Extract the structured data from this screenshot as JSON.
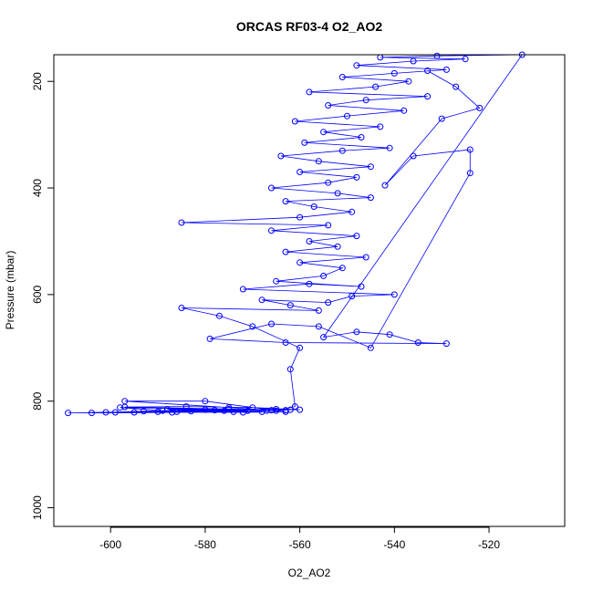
{
  "chart_data": {
    "type": "scatter",
    "title": "ORCAS RF03-4 O2_AO2",
    "xlabel": "O2_AO2",
    "ylabel": "Pressure (mbar)",
    "xlim": [
      -612,
      -504
    ],
    "ylim": [
      1035,
      150
    ],
    "y_reversed": true,
    "grid": false,
    "legend": "none",
    "marker": "open-circle",
    "connect_points": true,
    "color": "#0000ff",
    "x_ticks": [
      -600,
      -580,
      -560,
      -540,
      -520
    ],
    "x_tick_labels": [
      "-600",
      "-580",
      "-560",
      "-540",
      "-520"
    ],
    "y_ticks": [
      200,
      400,
      600,
      800,
      1000
    ],
    "y_tick_labels": [
      "200",
      "400",
      "600",
      "800",
      "1000"
    ],
    "series": [
      {
        "points": [
          [
            -574,
            820
          ],
          [
            -567,
            818
          ],
          [
            -562,
            816
          ],
          [
            -589,
            818
          ],
          [
            -580,
            816
          ],
          [
            -566,
            817
          ],
          [
            -598,
            812
          ],
          [
            -586,
            820
          ],
          [
            -571,
            818
          ],
          [
            -601,
            821
          ],
          [
            -593,
            819
          ],
          [
            -578,
            817
          ],
          [
            -609,
            822
          ],
          [
            -595,
            821
          ],
          [
            -583,
            819
          ],
          [
            -568,
            820
          ],
          [
            -604,
            822
          ],
          [
            -590,
            820
          ],
          [
            -575,
            815
          ],
          [
            -563,
            817
          ],
          [
            -597,
            811
          ],
          [
            -584,
            810
          ],
          [
            -570,
            812
          ],
          [
            -560,
            816
          ],
          [
            -588,
            815
          ],
          [
            -576,
            818
          ],
          [
            -565,
            815
          ],
          [
            -599,
            821
          ],
          [
            -587,
            821
          ],
          [
            -572,
            821
          ],
          [
            -563,
            820
          ],
          [
            -580,
            800
          ],
          [
            -597,
            800
          ],
          [
            -575,
            812
          ],
          [
            -565,
            818
          ],
          [
            -561,
            810
          ],
          [
            -562,
            740
          ],
          [
            -560,
            700
          ],
          [
            -570,
            660
          ],
          [
            -577,
            640
          ],
          [
            -585,
            625
          ],
          [
            -556,
            630
          ],
          [
            -562,
            620
          ],
          [
            -568,
            610
          ],
          [
            -554,
            615
          ],
          [
            -549,
            603
          ],
          [
            -540,
            600
          ],
          [
            -572,
            590
          ],
          [
            -558,
            580
          ],
          [
            -547,
            585
          ],
          [
            -565,
            575
          ],
          [
            -555,
            565
          ],
          [
            -551,
            550
          ],
          [
            -560,
            540
          ],
          [
            -546,
            530
          ],
          [
            -563,
            520
          ],
          [
            -552,
            510
          ],
          [
            -558,
            500
          ],
          [
            -548,
            490
          ],
          [
            -566,
            480
          ],
          [
            -554,
            470
          ],
          [
            -585,
            465
          ],
          [
            -560,
            455
          ],
          [
            -549,
            445
          ],
          [
            -557,
            435
          ],
          [
            -563,
            425
          ],
          [
            -545,
            418
          ],
          [
            -552,
            410
          ],
          [
            -566,
            400
          ],
          [
            -554,
            390
          ],
          [
            -548,
            380
          ],
          [
            -560,
            370
          ],
          [
            -545,
            360
          ],
          [
            -556,
            350
          ],
          [
            -564,
            340
          ],
          [
            -551,
            330
          ],
          [
            -541,
            325
          ],
          [
            -559,
            315
          ],
          [
            -547,
            305
          ],
          [
            -555,
            295
          ],
          [
            -543,
            285
          ],
          [
            -561,
            275
          ],
          [
            -550,
            265
          ],
          [
            -538,
            255
          ],
          [
            -554,
            245
          ],
          [
            -546,
            235
          ],
          [
            -533,
            228
          ],
          [
            -558,
            220
          ],
          [
            -544,
            210
          ],
          [
            -537,
            200
          ],
          [
            -551,
            192
          ],
          [
            -540,
            185
          ],
          [
            -529,
            178
          ],
          [
            -548,
            170
          ],
          [
            -536,
            162
          ],
          [
            -525,
            158
          ],
          [
            -543,
            155
          ],
          [
            -531,
            152
          ],
          [
            -513,
            150
          ],
          [
            -555,
            680
          ],
          [
            -548,
            670
          ],
          [
            -541,
            675
          ],
          [
            -535,
            690
          ],
          [
            -529,
            692
          ],
          [
            -563,
            690
          ],
          [
            -579,
            683
          ],
          [
            -566,
            655
          ],
          [
            -556,
            660
          ],
          [
            -545,
            700
          ],
          [
            -524,
            372
          ],
          [
            -524,
            328
          ],
          [
            -536,
            340
          ],
          [
            -542,
            395
          ],
          [
            -530,
            270
          ],
          [
            -522,
            250
          ],
          [
            -527,
            210
          ],
          [
            -533,
            180
          ]
        ]
      }
    ]
  }
}
